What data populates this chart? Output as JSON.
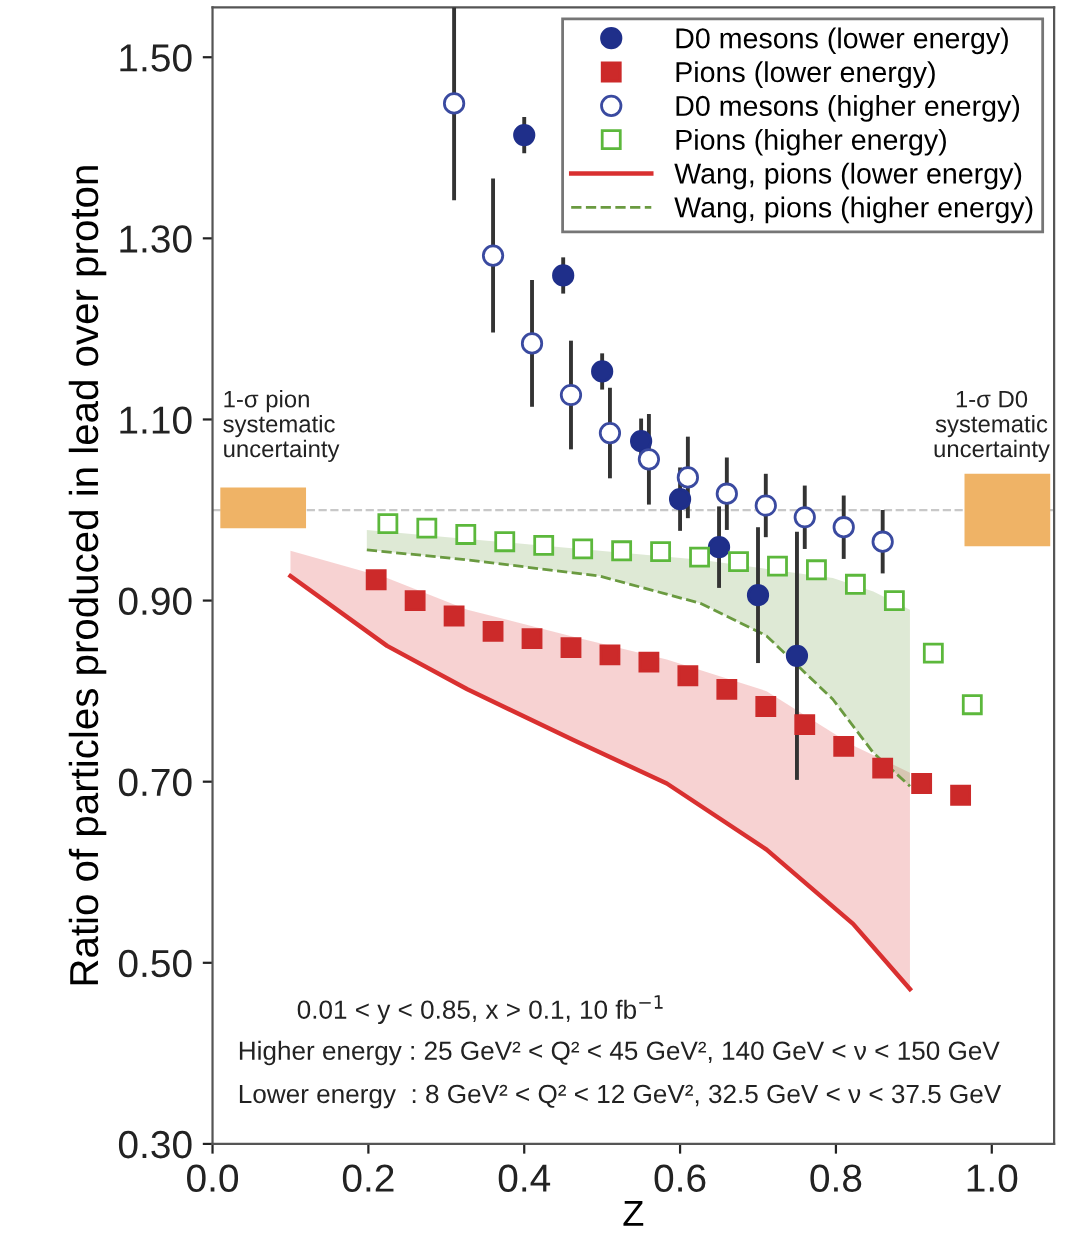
{
  "chart_data": {
    "type": "scatter",
    "xlabel": "Z",
    "ylabel": "Ratio of particles produced in lead over proton",
    "xlim": [
      0.0,
      1.08
    ],
    "ylim": [
      0.3,
      1.555
    ],
    "xticks": [
      {
        "value": 0.0,
        "label": "0.0"
      },
      0.2,
      0.4,
      0.6,
      0.8,
      {
        "value": 1.0,
        "label": "1.0"
      }
    ],
    "yticks": [
      {
        "value": 0.3,
        "label": "0.30"
      },
      {
        "value": 0.5,
        "label": "0.50"
      },
      {
        "value": 0.7,
        "label": "0.70"
      },
      {
        "value": 0.9,
        "label": "0.90"
      },
      {
        "value": 1.1,
        "label": "1.10"
      },
      {
        "value": 1.3,
        "label": "1.30"
      },
      {
        "value": 1.5,
        "label": "1.50"
      }
    ],
    "grid": false,
    "legend": "top right",
    "ref_lines": [
      {
        "axis": "y",
        "value": 1.0,
        "label": null,
        "color": "#c8c8c8",
        "line_style": "dashed"
      }
    ],
    "annotations": [
      "1-σ pion\nsystematic\nuncertainty",
      "1-σ D0\nsystematic\nuncertainty",
      "0.01 < y < 0.85, x > 0.1, 10 fb$^{−1}$",
      "Higher energy : 25 GeV² < Q² < 45 GeV², 140 GeV < ν < 150 GeV",
      "Lower energy  : 8 GeV² < Q² < 12 GeV², 32.5 GeV < ν < 37.5 GeV"
    ],
    "series": [
      {
        "type": "bar",
        "color": "#efb366",
        "x": [
          0.065,
          1.02
        ],
        "base": [
          0.98,
          0.96
        ],
        "values": [
          0.045,
          0.08
        ]
      },
      {
        "name": "D0 mesons (lower energy)",
        "color": "#1f2f8a",
        "marker": "circle",
        "x": [
          0.4,
          0.45,
          0.5,
          0.55,
          0.6,
          0.65,
          0.7,
          0.75
        ],
        "values": [
          1.414,
          1.259,
          1.153,
          1.076,
          1.012,
          0.959,
          0.906,
          0.839
        ],
        "errors": [
          0.02,
          0.02,
          0.02,
          0.025,
          0.035,
          0.045,
          0.075,
          0.137
        ]
      },
      {
        "name": "Pions (lower energy)",
        "color": "#cc2a2a",
        "marker": "square",
        "x": [
          0.21,
          0.26,
          0.31,
          0.36,
          0.41,
          0.46,
          0.51,
          0.56,
          0.61,
          0.66,
          0.71,
          0.76,
          0.81,
          0.86,
          0.91,
          0.96
        ],
        "values": [
          0.923,
          0.9,
          0.883,
          0.866,
          0.858,
          0.848,
          0.84,
          0.832,
          0.817,
          0.802,
          0.783,
          0.763,
          0.739,
          0.715,
          0.698,
          0.685
        ]
      },
      {
        "name": "D0 mesons (higher energy)",
        "color": "#3a4aa0",
        "marker": "circle",
        "x": [
          0.31,
          0.36,
          0.41,
          0.46,
          0.51,
          0.56,
          0.61,
          0.66,
          0.71,
          0.76,
          0.81,
          0.86
        ],
        "values": [
          1.449,
          1.281,
          1.184,
          1.127,
          1.085,
          1.056,
          1.036,
          1.018,
          1.005,
          0.992,
          0.981,
          0.965
        ],
        "errors": [
          0.107,
          0.085,
          0.07,
          0.06,
          0.05,
          0.05,
          0.045,
          0.04,
          0.035,
          0.035,
          0.035,
          0.035
        ]
      },
      {
        "name": "Pions (higher energy)",
        "color": "#5cb83c",
        "marker": "square",
        "x": [
          0.225,
          0.275,
          0.325,
          0.375,
          0.425,
          0.475,
          0.525,
          0.575,
          0.625,
          0.675,
          0.725,
          0.775,
          0.825,
          0.875,
          0.925,
          0.975
        ],
        "values": [
          0.985,
          0.98,
          0.973,
          0.965,
          0.961,
          0.957,
          0.955,
          0.954,
          0.948,
          0.943,
          0.938,
          0.934,
          0.918,
          0.9,
          0.842,
          0.785
        ]
      },
      {
        "name": "Wang, pions (lower energy)",
        "type": "line",
        "color": "#d93030",
        "line_style": "solid",
        "x": [
          0.1,
          0.224,
          0.327,
          0.463,
          0.583,
          0.711,
          0.822,
          0.895
        ],
        "values": [
          0.927,
          0.85,
          0.802,
          0.746,
          0.698,
          0.625,
          0.543,
          0.471
        ],
        "lower": [
          0.927,
          0.85,
          0.802,
          0.746,
          0.698,
          0.625,
          0.543,
          0.471
        ],
        "upper": [
          0.955,
          0.925,
          0.89,
          0.86,
          0.835,
          0.8,
          0.74,
          0.71
        ]
      },
      {
        "name": "Wang, pions (higher energy)",
        "type": "line",
        "color": "#6a9a40",
        "line_style": "dashed",
        "x": [
          0.198,
          0.327,
          0.497,
          0.626,
          0.711,
          0.796,
          0.848,
          0.895
        ],
        "values": [
          0.956,
          0.945,
          0.927,
          0.897,
          0.861,
          0.791,
          0.732,
          0.695
        ],
        "lower": [
          0.956,
          0.945,
          0.927,
          0.897,
          0.861,
          0.791,
          0.732,
          0.695
        ],
        "upper": [
          0.978,
          0.968,
          0.955,
          0.945,
          0.935,
          0.925,
          0.91,
          0.89
        ]
      }
    ]
  }
}
